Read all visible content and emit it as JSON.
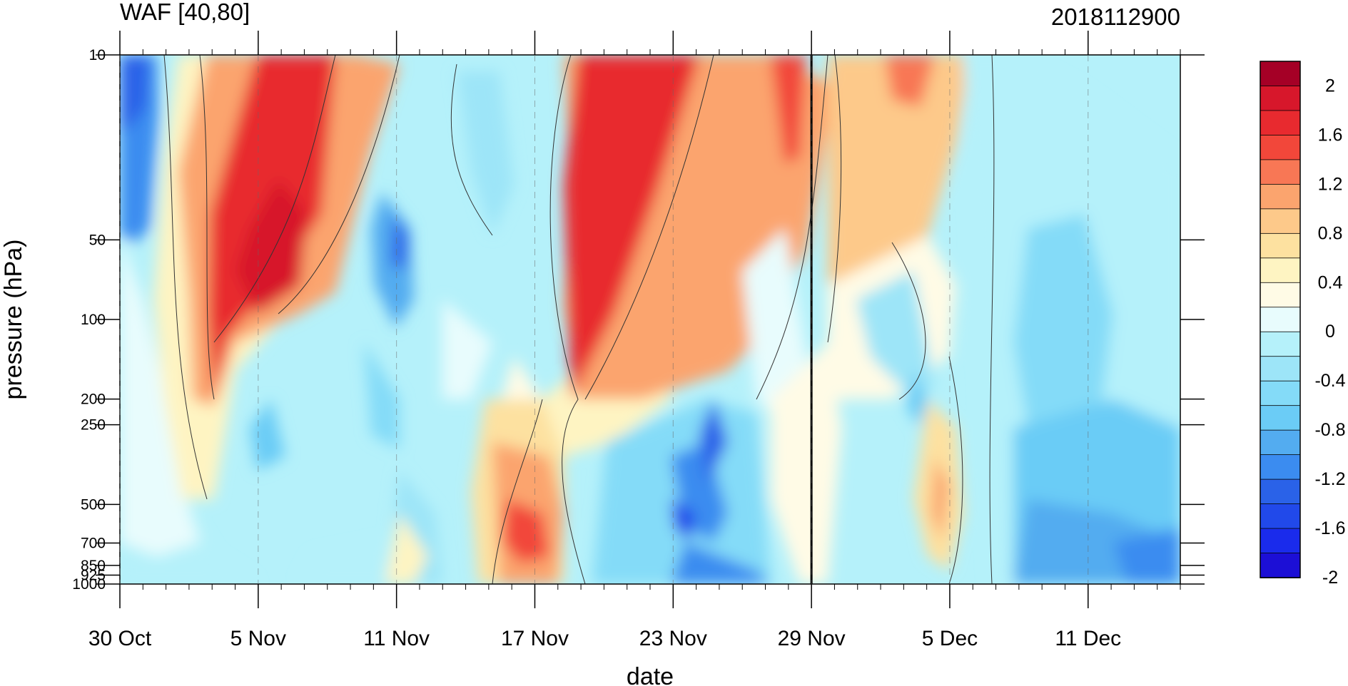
{
  "chart_data": {
    "type": "heatmap",
    "title": "WAF [40,80]",
    "subtitle": "2018112900",
    "xlabel": "date",
    "ylabel": "pressure (hPa)",
    "x_ticks": [
      "30 Oct",
      "5 Nov",
      "11 Nov",
      "17 Nov",
      "23 Nov",
      "29 Nov",
      "5 Dec",
      "11 Dec"
    ],
    "x_range": [
      "2018-10-30",
      "2018-12-15"
    ],
    "y_ticks": [
      "10",
      "50",
      "100",
      "200",
      "250",
      "500",
      "700",
      "850",
      "925",
      "1000"
    ],
    "y_range": [
      1000,
      10
    ],
    "y_scale": "log",
    "reference_line_date": "29 Nov",
    "colorbar": {
      "labels": [
        "2",
        "1.6",
        "1.2",
        "0.8",
        "0.4",
        "0",
        "-0.4",
        "-0.8",
        "-1.2",
        "-1.6",
        "-2"
      ],
      "colors": [
        "#a50026",
        "#d7172b",
        "#e82a2f",
        "#f2473a",
        "#f87755",
        "#fba46e",
        "#fdc98a",
        "#fde1a0",
        "#fef4c2",
        "#fffbe6",
        "#e8fcfd",
        "#b5f1fa",
        "#9de5f8",
        "#84dbf8",
        "#6bccf6",
        "#53acf0",
        "#3b8cf0",
        "#2a62e8",
        "#2149ea",
        "#1a2bec",
        "#1c0fd6"
      ],
      "legend_placement": "right"
    }
  }
}
